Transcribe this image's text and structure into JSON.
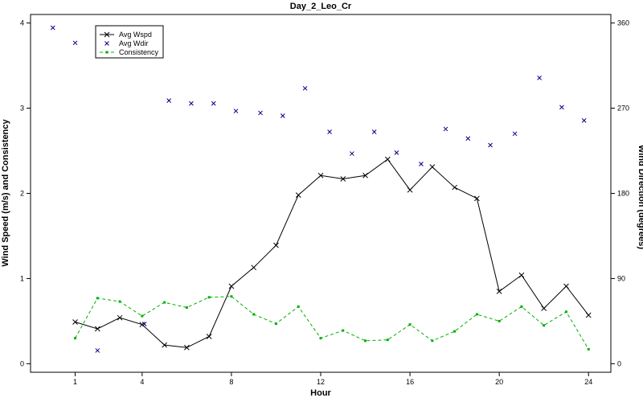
{
  "chart_data": {
    "type": "line",
    "title": "Day_2_Leo_Cr",
    "xlabel": "Hour",
    "ylabel": "Wind Speed (m/s) and Consistency",
    "y2label": "Wind Direction (degrees)",
    "xlim": [
      -1,
      25
    ],
    "ylim": [
      -0.1,
      4.1
    ],
    "y2lim": [
      -9,
      369
    ],
    "x_ticks": [
      "1",
      "4",
      "8",
      "12",
      "16",
      "20",
      "24"
    ],
    "y_ticks": [
      "0",
      "1",
      "2",
      "3",
      "4"
    ],
    "y2_ticks": [
      "0",
      "90",
      "180",
      "270",
      "360"
    ],
    "legend_position": "top-left",
    "colors": {
      "wspd": "#000000",
      "wdir": "#00008b",
      "consistency": "#00b000"
    },
    "series": [
      {
        "name": "Avg Wspd",
        "axis": "left",
        "style": "line-x",
        "x": [
          1,
          2,
          3,
          4,
          5,
          6,
          7,
          8,
          9,
          10,
          11,
          12,
          13,
          14,
          15,
          16,
          17,
          18,
          19,
          20,
          21,
          22,
          23,
          24
        ],
        "values": [
          0.49,
          0.41,
          0.54,
          0.46,
          0.22,
          0.19,
          0.32,
          0.91,
          1.13,
          1.39,
          1.98,
          2.21,
          2.17,
          2.21,
          2.4,
          2.04,
          2.31,
          2.07,
          1.94,
          0.85,
          1.04,
          0.65,
          0.91,
          0.57
        ]
      },
      {
        "name": "Avg Wdir",
        "axis": "right",
        "style": "marker-x",
        "x": [
          0.0,
          1.0,
          2.0,
          4.1,
          5.2,
          6.2,
          7.2,
          8.2,
          9.3,
          10.3,
          11.3,
          12.4,
          13.4,
          14.4,
          15.4,
          16.5,
          17.6,
          18.6,
          19.6,
          20.7,
          21.8,
          22.8,
          23.8
        ],
        "values": [
          355,
          339,
          14,
          42,
          278,
          275,
          275,
          267,
          265,
          262,
          291,
          245,
          222,
          245,
          223,
          211,
          248,
          238,
          231,
          243,
          302,
          271,
          257
        ]
      },
      {
        "name": "Consistency",
        "axis": "left",
        "style": "dashed-dot",
        "x": [
          1,
          2,
          3,
          4,
          5,
          6,
          7,
          8,
          9,
          10,
          11,
          12,
          13,
          14,
          15,
          16,
          17,
          18,
          19,
          20,
          21,
          22,
          23,
          24
        ],
        "values": [
          0.3,
          0.77,
          0.73,
          0.56,
          0.72,
          0.66,
          0.78,
          0.79,
          0.58,
          0.47,
          0.67,
          0.3,
          0.39,
          0.27,
          0.28,
          0.46,
          0.27,
          0.38,
          0.58,
          0.5,
          0.67,
          0.45,
          0.61,
          0.17
        ]
      }
    ]
  }
}
